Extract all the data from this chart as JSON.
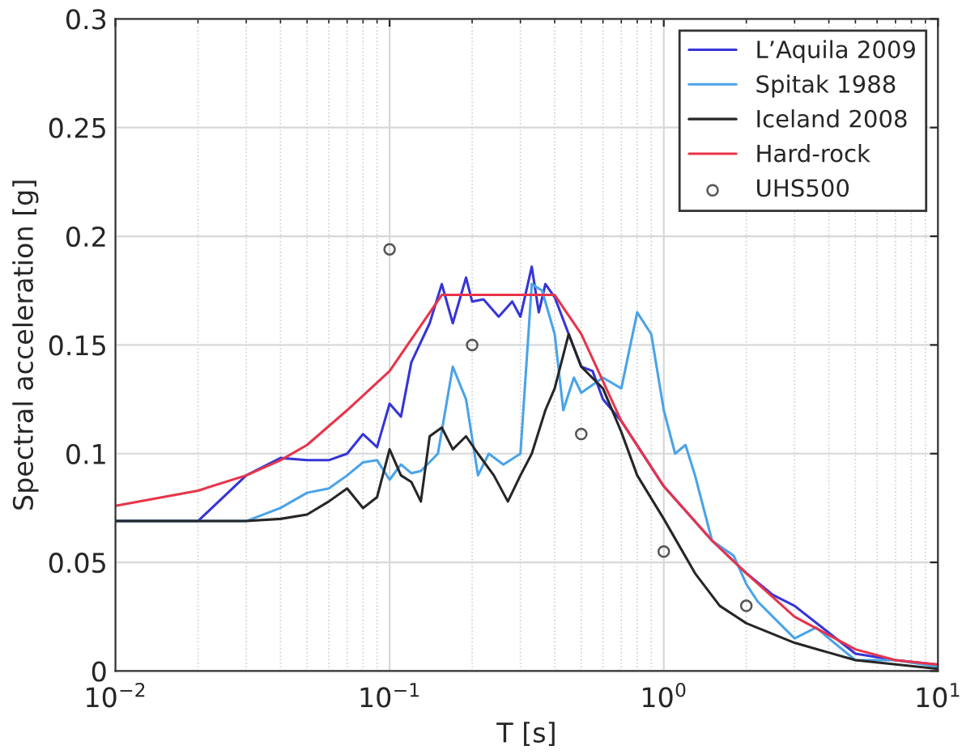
{
  "chart_data": {
    "type": "line",
    "xlabel": "T [s]",
    "ylabel": "Spectral acceleration [g]",
    "log": "x",
    "grid": true,
    "legend": "top right",
    "xlim": [
      0.01,
      10
    ],
    "xticks": [
      {
        "value": 0.01,
        "label": "10$^{−2}$"
      },
      {
        "value": 0.1,
        "label": "10$^{−1}$"
      },
      {
        "value": 1,
        "label": "10$^{0}$"
      },
      {
        "value": 10,
        "label": "10$^{1}$"
      }
    ],
    "ylim": [
      0,
      0.3
    ],
    "yticks": [
      0,
      0.05,
      0.1,
      0.15,
      0.2,
      0.25,
      0.3
    ],
    "series": [
      {
        "name": "L’Aquila 2009",
        "color": "#3535d8",
        "x": [
          0.01,
          0.02,
          0.03,
          0.04,
          0.05,
          0.06,
          0.07,
          0.08,
          0.09,
          0.1,
          0.11,
          0.12,
          0.14,
          0.155,
          0.17,
          0.19,
          0.2,
          0.22,
          0.25,
          0.28,
          0.3,
          0.33,
          0.35,
          0.37,
          0.4,
          0.45,
          0.5,
          0.55,
          0.6,
          0.7,
          1,
          1.5,
          2,
          2.5,
          3,
          5,
          7,
          10
        ],
        "values": [
          0.069,
          0.069,
          0.09,
          0.098,
          0.097,
          0.097,
          0.1,
          0.109,
          0.103,
          0.123,
          0.117,
          0.142,
          0.16,
          0.178,
          0.16,
          0.181,
          0.17,
          0.171,
          0.163,
          0.17,
          0.163,
          0.186,
          0.165,
          0.178,
          0.172,
          0.155,
          0.14,
          0.138,
          0.125,
          0.115,
          0.085,
          0.06,
          0.045,
          0.035,
          0.03,
          0.008,
          0.005,
          0.003
        ]
      },
      {
        "name": "Spitak 1988",
        "color": "#4aa3e8",
        "x": [
          0.01,
          0.03,
          0.04,
          0.05,
          0.06,
          0.07,
          0.08,
          0.09,
          0.1,
          0.11,
          0.12,
          0.13,
          0.15,
          0.17,
          0.19,
          0.21,
          0.23,
          0.26,
          0.3,
          0.33,
          0.36,
          0.4,
          0.43,
          0.47,
          0.5,
          0.6,
          0.7,
          0.8,
          0.9,
          1.0,
          1.1,
          1.2,
          1.3,
          1.5,
          1.8,
          2,
          2.2,
          3,
          3.6,
          4,
          5,
          7,
          10
        ],
        "values": [
          0.069,
          0.069,
          0.075,
          0.082,
          0.084,
          0.09,
          0.096,
          0.097,
          0.088,
          0.095,
          0.091,
          0.092,
          0.1,
          0.14,
          0.125,
          0.09,
          0.1,
          0.095,
          0.1,
          0.178,
          0.175,
          0.155,
          0.12,
          0.135,
          0.128,
          0.135,
          0.13,
          0.165,
          0.155,
          0.12,
          0.1,
          0.104,
          0.09,
          0.06,
          0.053,
          0.04,
          0.032,
          0.015,
          0.02,
          0.015,
          0.005,
          0.005,
          0.002
        ]
      },
      {
        "name": "Iceland 2008",
        "color": "#262626",
        "x": [
          0.01,
          0.03,
          0.04,
          0.05,
          0.06,
          0.07,
          0.08,
          0.09,
          0.1,
          0.11,
          0.12,
          0.13,
          0.14,
          0.155,
          0.17,
          0.19,
          0.21,
          0.24,
          0.27,
          0.3,
          0.33,
          0.37,
          0.4,
          0.45,
          0.5,
          0.6,
          0.7,
          0.8,
          1,
          1.3,
          1.6,
          2,
          3,
          5,
          10
        ],
        "values": [
          0.069,
          0.069,
          0.07,
          0.072,
          0.078,
          0.084,
          0.075,
          0.08,
          0.102,
          0.09,
          0.087,
          0.078,
          0.108,
          0.112,
          0.102,
          0.108,
          0.1,
          0.09,
          0.078,
          0.09,
          0.1,
          0.12,
          0.13,
          0.155,
          0.14,
          0.13,
          0.11,
          0.09,
          0.07,
          0.045,
          0.03,
          0.022,
          0.013,
          0.005,
          0.001
        ]
      },
      {
        "name": "Hard-rock",
        "color": "#e8344a",
        "x": [
          0.01,
          0.02,
          0.03,
          0.04,
          0.05,
          0.07,
          0.1,
          0.155,
          0.4,
          0.5,
          0.7,
          1,
          1.5,
          2,
          3,
          5,
          7,
          10
        ],
        "values": [
          0.076,
          0.083,
          0.09,
          0.097,
          0.104,
          0.12,
          0.138,
          0.173,
          0.173,
          0.155,
          0.115,
          0.085,
          0.06,
          0.045,
          0.025,
          0.01,
          0.005,
          0.003
        ]
      },
      {
        "name": "UHS500",
        "type": "scatter",
        "marker": "circle",
        "color": "#555555",
        "x": [
          0.1,
          0.2,
          0.5,
          1,
          2
        ],
        "values": [
          0.194,
          0.15,
          0.109,
          0.055,
          0.03
        ]
      }
    ]
  }
}
